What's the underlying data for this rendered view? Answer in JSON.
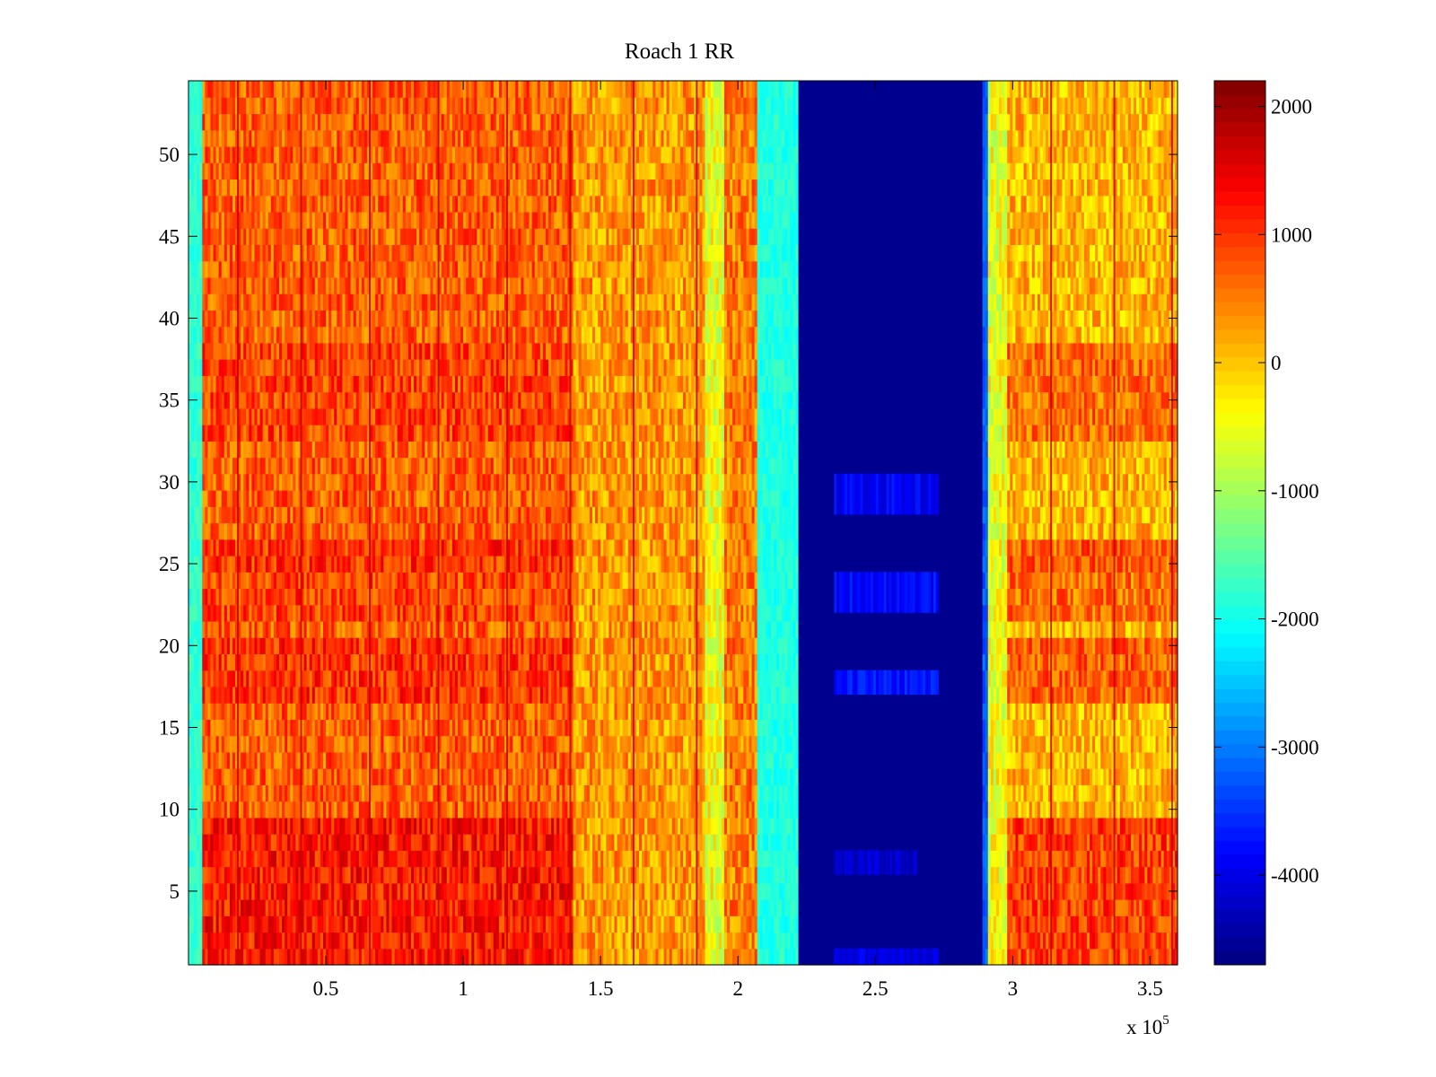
{
  "chart_data": {
    "type": "heatmap",
    "title": "Roach 1 RR",
    "xlabel": "",
    "ylabel": "",
    "x_multiplier_label": "x 10",
    "x_multiplier_exponent": "5",
    "xlim": [
      0,
      360000
    ],
    "ylim": [
      0.5,
      54.5
    ],
    "x_ticks": [
      {
        "value": 0.5,
        "label": "0.5"
      },
      {
        "value": 1.0,
        "label": "1"
      },
      {
        "value": 1.5,
        "label": "1.5"
      },
      {
        "value": 2.0,
        "label": "2"
      },
      {
        "value": 2.5,
        "label": "2.5"
      },
      {
        "value": 3.0,
        "label": "3"
      },
      {
        "value": 3.5,
        "label": "3.5"
      }
    ],
    "y_ticks": [
      {
        "value": 5,
        "label": "5"
      },
      {
        "value": 10,
        "label": "10"
      },
      {
        "value": 15,
        "label": "15"
      },
      {
        "value": 20,
        "label": "20"
      },
      {
        "value": 25,
        "label": "25"
      },
      {
        "value": 30,
        "label": "30"
      },
      {
        "value": 35,
        "label": "35"
      },
      {
        "value": 40,
        "label": "40"
      },
      {
        "value": 45,
        "label": "45"
      },
      {
        "value": 50,
        "label": "50"
      }
    ],
    "colorbar": {
      "colormap": "jet",
      "clim": [
        -4700,
        2200
      ],
      "ticks": [
        {
          "value": 2000,
          "label": "2000"
        },
        {
          "value": 1000,
          "label": "1000"
        },
        {
          "value": 0,
          "label": "0"
        },
        {
          "value": -1000,
          "label": "-1000"
        },
        {
          "value": -2000,
          "label": "-2000"
        },
        {
          "value": -3000,
          "label": "-3000"
        },
        {
          "value": -4000,
          "label": "-4000"
        }
      ]
    },
    "x_segments": [
      {
        "x_start": 0,
        "x_end": 5000,
        "value": -1800
      },
      {
        "x_start": 5000,
        "x_end": 140000,
        "value": 700
      },
      {
        "x_start": 140000,
        "x_end": 188000,
        "value": 300
      },
      {
        "x_start": 188000,
        "x_end": 195000,
        "value": -500
      },
      {
        "x_start": 195000,
        "x_end": 207000,
        "value": 500
      },
      {
        "x_start": 207000,
        "x_end": 222000,
        "value": -1900
      },
      {
        "x_start": 222000,
        "x_end": 289000,
        "value": -4600
      },
      {
        "x_start": 289000,
        "x_end": 291000,
        "value": -3200
      },
      {
        "x_start": 291000,
        "x_end": 298000,
        "value": -500
      },
      {
        "x_start": 298000,
        "x_end": 360000,
        "value": 100
      }
    ],
    "dark_column_x": [
      18000,
      41000,
      66000,
      91000,
      116000,
      139000,
      162000,
      185000,
      314000,
      337000,
      358000
    ],
    "row_bands": [
      {
        "y_start": 1,
        "y_end": 10,
        "value": 1200
      },
      {
        "y_start": 17,
        "y_end": 21,
        "value": 1000
      },
      {
        "y_start": 22,
        "y_end": 25,
        "value": 900
      },
      {
        "y_start": 25,
        "y_end": 27,
        "value": 1000
      },
      {
        "y_start": 33,
        "y_end": 39,
        "value": 900
      }
    ],
    "blue_band_rows": [
      {
        "y_start": 0.5,
        "y_end": 1.5,
        "x_start": 235000,
        "x_end": 273000,
        "value": -4000
      },
      {
        "y_start": 6,
        "y_end": 7.5,
        "x_start": 235000,
        "x_end": 265000,
        "value": -4200
      },
      {
        "y_start": 17,
        "y_end": 18.5,
        "x_start": 235000,
        "x_end": 273000,
        "value": -3700
      },
      {
        "y_start": 22,
        "y_end": 24.5,
        "x_start": 235000,
        "x_end": 273000,
        "value": -3800
      },
      {
        "y_start": 28,
        "y_end": 30.5,
        "x_start": 235000,
        "x_end": 273000,
        "value": -3900
      }
    ]
  }
}
